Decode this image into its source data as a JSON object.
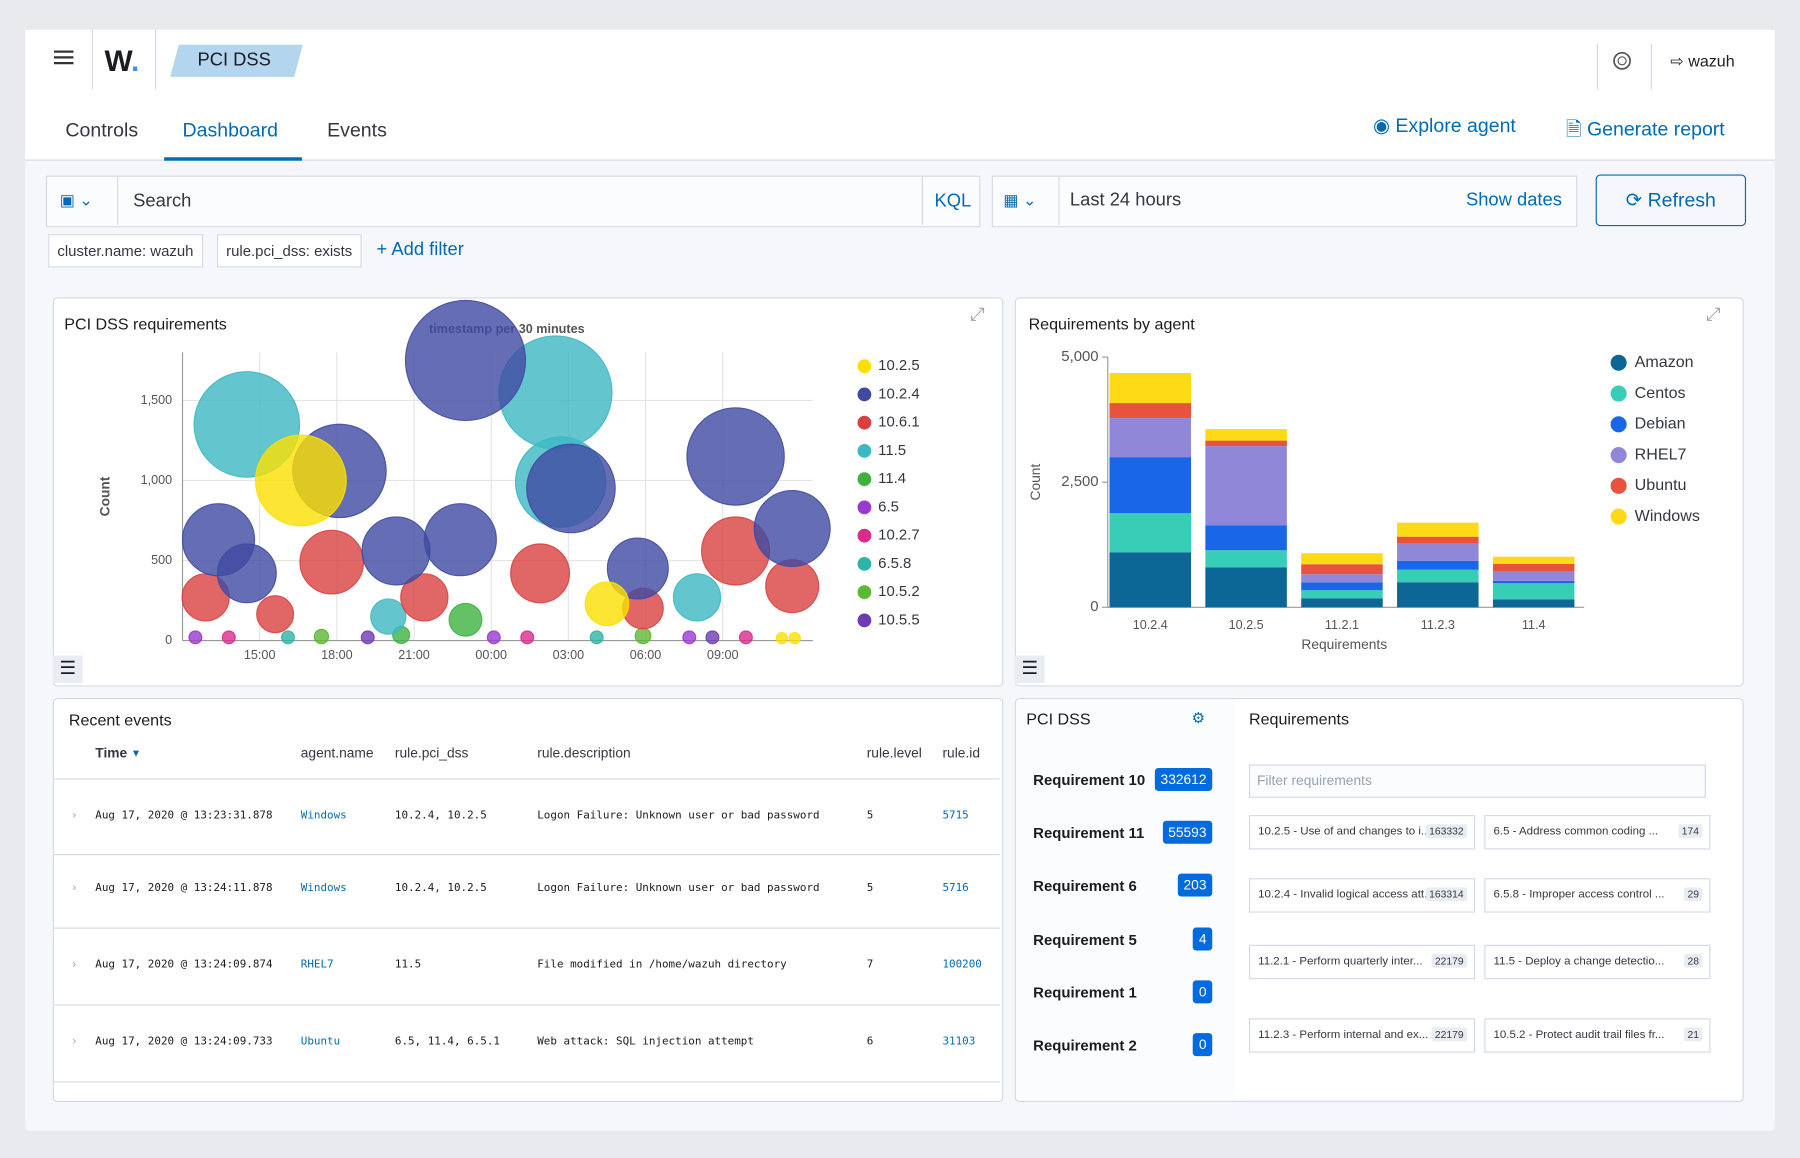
{
  "header": {
    "breadcrumb": "PCI DSS",
    "user": "wazuh"
  },
  "tabs": [
    "Controls",
    "Dashboard",
    "Events"
  ],
  "actions": [
    "Explore agent",
    "Generate report"
  ],
  "search": {
    "placeholder": "Search",
    "language": "KQL",
    "time_range": "Last 24 hours",
    "show_dates": "Show dates",
    "refresh": "Refresh"
  },
  "filters": [
    "cluster.name: wazuh",
    "rule.pci_dss: exists"
  ],
  "add_filter": "+ Add filter",
  "chart_data": [
    {
      "type": "bubble",
      "title": "PCI DSS requirements",
      "xlabel": "timestamp per 30 minutes",
      "ylabel": "Count",
      "grid": true,
      "legend": "right",
      "xlim": [
        12,
        36.5
      ],
      "xticks": [
        {
          "value": 15,
          "label": "15:00"
        },
        {
          "value": 18,
          "label": "18:00"
        },
        {
          "value": 21,
          "label": "21:00"
        },
        {
          "value": 24,
          "label": "00:00"
        },
        {
          "value": 27,
          "label": "03:00"
        },
        {
          "value": 30,
          "label": "06:00"
        },
        {
          "value": 33,
          "label": "09:00"
        }
      ],
      "ylim": [
        0,
        1800
      ],
      "yticks": [
        0,
        500,
        {
          "value": 1000,
          "label": "1,000"
        },
        {
          "value": 1500,
          "label": "1,500"
        }
      ],
      "series": [
        {
          "name": "10.2.5",
          "color": "#fde000",
          "x": [
            16.6,
            28.5,
            35.3,
            35.8
          ],
          "values": [
            1000,
            230,
            15,
            15
          ]
        },
        {
          "name": "10.2.4",
          "color": "#3f4aa3",
          "x": [
            23.0,
            33.5,
            18.1,
            13.4,
            27.1,
            35.7,
            22.8,
            20.3,
            14.5,
            29.7
          ],
          "values": [
            1750,
            1150,
            1060,
            630,
            950,
            700,
            630,
            560,
            420,
            450
          ]
        },
        {
          "name": "10.6.1",
          "color": "#d8413f",
          "x": [
            12.9,
            17.8,
            25.9,
            33.5,
            29.9,
            21.4,
            15.6,
            35.7
          ],
          "values": [
            270,
            490,
            420,
            560,
            200,
            270,
            165,
            340
          ]
        },
        {
          "name": "11.5",
          "color": "#3cb8c3",
          "x": [
            14.5,
            26.5,
            26.7,
            32.0,
            20.0
          ],
          "values": [
            1350,
            1550,
            990,
            270,
            150
          ]
        },
        {
          "name": "11.4",
          "color": "#3fb13f",
          "x": [
            23.0,
            20.5
          ],
          "values": [
            130,
            35
          ]
        },
        {
          "name": "6.5",
          "color": "#9a3ad0",
          "x": [
            12.5,
            24.1,
            31.7
          ],
          "values": [
            20,
            20,
            20
          ]
        },
        {
          "name": "10.2.7",
          "color": "#db2b8b",
          "x": [
            13.8,
            25.4,
            33.9
          ],
          "values": [
            20,
            20,
            20
          ]
        },
        {
          "name": "6.5.8",
          "color": "#2db4a5",
          "x": [
            16.1,
            28.1
          ],
          "values": [
            20,
            20
          ]
        },
        {
          "name": "10.5.2",
          "color": "#5bb832",
          "x": [
            17.4,
            29.9
          ],
          "values": [
            25,
            30
          ]
        },
        {
          "name": "10.5.5",
          "color": "#6f3ab5",
          "x": [
            19.2,
            32.6
          ],
          "values": [
            20,
            20
          ]
        }
      ]
    },
    {
      "type": "bar",
      "stacked": true,
      "title": "Requirements by agent",
      "xlabel": "Requirements",
      "ylabel": "Count",
      "legend": "right",
      "categories": [
        "10.2.4",
        "10.2.5",
        "11.2.1",
        "11.2.3",
        "11.4"
      ],
      "ylim": [
        0,
        5000
      ],
      "yticks": [
        0,
        {
          "value": 2500,
          "label": "2,500"
        },
        {
          "value": 5000,
          "label": "5,000"
        }
      ],
      "series": [
        {
          "name": "Amazon",
          "color": "#0d6796",
          "values": [
            1100,
            800,
            180,
            500,
            160
          ]
        },
        {
          "name": "Centos",
          "color": "#37cdb6",
          "values": [
            780,
            340,
            160,
            250,
            320
          ]
        },
        {
          "name": "Debian",
          "color": "#1a66e8",
          "values": [
            1120,
            500,
            160,
            180,
            50
          ]
        },
        {
          "name": "RHEL7",
          "color": "#9187d9",
          "values": [
            780,
            1580,
            160,
            340,
            180
          ]
        },
        {
          "name": "Ubuntu",
          "color": "#e7533c",
          "values": [
            300,
            110,
            200,
            140,
            160
          ]
        },
        {
          "name": "Windows",
          "color": "#fed915",
          "values": [
            600,
            230,
            220,
            280,
            140
          ]
        }
      ]
    }
  ],
  "recent_events": {
    "title": "Recent events",
    "columns": [
      "Time",
      "agent.name",
      "rule.pci_dss",
      "rule.description",
      "rule.level",
      "rule.id"
    ],
    "rows": [
      [
        "Aug 17, 2020 @ 13:23:31.878",
        "Windows",
        "10.2.4, 10.2.5",
        "Logon Failure: Unknown user or bad password",
        "5",
        "5715"
      ],
      [
        "Aug 17, 2020 @ 13:24:11.878",
        "Windows",
        "10.2.4, 10.2.5",
        "Logon Failure: Unknown user or bad password",
        "5",
        "5716"
      ],
      [
        "Aug 17, 2020 @ 13:24:09.874",
        "RHEL7",
        "11.5",
        "File modified in /home/wazuh directory",
        "7",
        "100200"
      ],
      [
        "Aug 17, 2020 @ 13:24:09.733",
        "Ubuntu",
        "6.5, 11.4, 6.5.1",
        "Web attack: SQL injection attempt",
        "6",
        "31103"
      ]
    ]
  },
  "pci_dss": {
    "title": "PCI DSS",
    "items": [
      {
        "name": "Requirement 10",
        "count": "332612"
      },
      {
        "name": "Requirement 11",
        "count": "55593"
      },
      {
        "name": "Requirement 6",
        "count": "203"
      },
      {
        "name": "Requirement 5",
        "count": "4"
      },
      {
        "name": "Requirement 1",
        "count": "0"
      },
      {
        "name": "Requirement 2",
        "count": "0"
      }
    ]
  },
  "requirements": {
    "title": "Requirements",
    "filter_placeholder": "Filter requirements",
    "items": [
      {
        "label": "10.2.5 - Use of and changes to i...",
        "count": "163332"
      },
      {
        "label": "6.5 - Address common coding ...",
        "count": "174"
      },
      {
        "label": "10.2.4 - Invalid logical access att...",
        "count": "163314"
      },
      {
        "label": "6.5.8 - Improper access control ...",
        "count": "29"
      },
      {
        "label": "11.2.1 - Perform quarterly inter...",
        "count": "22179"
      },
      {
        "label": "11.5 - Deploy a change detectio...",
        "count": "28"
      },
      {
        "label": "11.2.3 - Perform internal and ex...",
        "count": "22179"
      },
      {
        "label": "10.5.2 - Protect audit trail files fr...",
        "count": "21"
      }
    ]
  }
}
